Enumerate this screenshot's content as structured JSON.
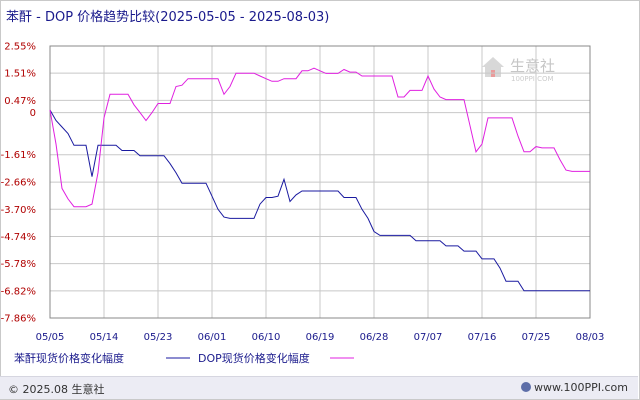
{
  "title": "苯酐 - DOP 价格趋势比较(2025-05-05 - 2025-08-03)",
  "watermark": {
    "brand": "生意社",
    "url": "100PPI.COM"
  },
  "footer": {
    "copyright": "© 2025.08 生意社",
    "site": "www.100PPI.com"
  },
  "colors": {
    "series_1": "#1a1aa0",
    "series_2": "#e020e0",
    "axis_label": "#b00000",
    "grid": "#c8c8c8"
  },
  "chart_data": {
    "type": "line",
    "xlabel": "",
    "ylabel": "",
    "ylim": [
      -7.86,
      2.55
    ],
    "y_ticks": [
      2.55,
      1.51,
      0.47,
      0,
      -1.61,
      -2.66,
      -3.7,
      -4.74,
      -5.78,
      -6.82,
      -7.86
    ],
    "y_tick_labels": [
      "2.55%",
      "1.51%",
      "0.47%",
      "0",
      "-1.61%",
      "-2.66%",
      "-3.70%",
      "-4.74%",
      "-5.78%",
      "-6.82%",
      "-7.86%"
    ],
    "x_range": [
      0,
      90
    ],
    "x_ticks": [
      0,
      9,
      18,
      27,
      36,
      45,
      54,
      63,
      72,
      81,
      90
    ],
    "x_tick_labels": [
      "05/05",
      "05/14",
      "05/23",
      "06/01",
      "06/10",
      "06/19",
      "06/28",
      "07/07",
      "07/16",
      "07/25",
      "08/03"
    ],
    "grid": true,
    "legend_position": "bottom",
    "series": [
      {
        "name": "苯酐现货价格变化幅度",
        "color": "#1a1aa0",
        "points": [
          [
            0,
            0.1
          ],
          [
            1,
            -0.3
          ],
          [
            2,
            -0.55
          ],
          [
            3,
            -0.8
          ],
          [
            4,
            -1.25
          ],
          [
            5,
            -1.25
          ],
          [
            6,
            -1.25
          ],
          [
            7,
            -2.45
          ],
          [
            8,
            -1.25
          ],
          [
            9,
            -1.25
          ],
          [
            10,
            -1.25
          ],
          [
            11,
            -1.25
          ],
          [
            12,
            -1.45
          ],
          [
            13,
            -1.45
          ],
          [
            14,
            -1.45
          ],
          [
            15,
            -1.65
          ],
          [
            16,
            -1.65
          ],
          [
            17,
            -1.65
          ],
          [
            18,
            -1.65
          ],
          [
            19,
            -1.65
          ],
          [
            20,
            -1.95
          ],
          [
            21,
            -2.3
          ],
          [
            22,
            -2.7
          ],
          [
            23,
            -2.7
          ],
          [
            24,
            -2.7
          ],
          [
            25,
            -2.7
          ],
          [
            26,
            -2.7
          ],
          [
            27,
            -3.2
          ],
          [
            28,
            -3.7
          ],
          [
            29,
            -4.0
          ],
          [
            30,
            -4.05
          ],
          [
            31,
            -4.05
          ],
          [
            32,
            -4.05
          ],
          [
            33,
            -4.05
          ],
          [
            34,
            -4.05
          ],
          [
            35,
            -3.5
          ],
          [
            36,
            -3.25
          ],
          [
            37,
            -3.25
          ],
          [
            38,
            -3.2
          ],
          [
            39,
            -2.55
          ],
          [
            40,
            -3.4
          ],
          [
            41,
            -3.15
          ],
          [
            42,
            -3.0
          ],
          [
            43,
            -3.0
          ],
          [
            44,
            -3.0
          ],
          [
            45,
            -3.0
          ],
          [
            46,
            -3.0
          ],
          [
            47,
            -3.0
          ],
          [
            48,
            -3.0
          ],
          [
            49,
            -3.25
          ],
          [
            50,
            -3.25
          ],
          [
            51,
            -3.25
          ],
          [
            52,
            -3.7
          ],
          [
            53,
            -4.05
          ],
          [
            54,
            -4.55
          ],
          [
            55,
            -4.7
          ],
          [
            56,
            -4.7
          ],
          [
            57,
            -4.7
          ],
          [
            58,
            -4.7
          ],
          [
            59,
            -4.7
          ],
          [
            60,
            -4.7
          ],
          [
            61,
            -4.9
          ],
          [
            62,
            -4.9
          ],
          [
            63,
            -4.9
          ],
          [
            64,
            -4.9
          ],
          [
            65,
            -4.9
          ],
          [
            66,
            -5.1
          ],
          [
            67,
            -5.1
          ],
          [
            68,
            -5.1
          ],
          [
            69,
            -5.3
          ],
          [
            70,
            -5.3
          ],
          [
            71,
            -5.3
          ],
          [
            72,
            -5.6
          ],
          [
            73,
            -5.6
          ],
          [
            74,
            -5.6
          ],
          [
            75,
            -5.95
          ],
          [
            76,
            -6.45
          ],
          [
            77,
            -6.45
          ],
          [
            78,
            -6.45
          ],
          [
            79,
            -6.82
          ],
          [
            80,
            -6.82
          ],
          [
            81,
            -6.82
          ],
          [
            82,
            -6.82
          ],
          [
            83,
            -6.82
          ],
          [
            84,
            -6.82
          ],
          [
            85,
            -6.82
          ],
          [
            86,
            -6.82
          ],
          [
            87,
            -6.82
          ],
          [
            88,
            -6.82
          ],
          [
            89,
            -6.82
          ],
          [
            90,
            -6.82
          ]
        ]
      },
      {
        "name": "DOP现货价格变化幅度",
        "color": "#e020e0",
        "points": [
          [
            0,
            0.1
          ],
          [
            1,
            -1.2
          ],
          [
            2,
            -2.9
          ],
          [
            3,
            -3.3
          ],
          [
            4,
            -3.6
          ],
          [
            5,
            -3.6
          ],
          [
            6,
            -3.6
          ],
          [
            7,
            -3.5
          ],
          [
            8,
            -2.3
          ],
          [
            9,
            -0.2
          ],
          [
            10,
            0.7
          ],
          [
            11,
            0.7
          ],
          [
            12,
            0.7
          ],
          [
            13,
            0.7
          ],
          [
            14,
            0.3
          ],
          [
            15,
            0.0
          ],
          [
            16,
            -0.3
          ],
          [
            17,
            0.0
          ],
          [
            18,
            0.35
          ],
          [
            19,
            0.35
          ],
          [
            20,
            0.35
          ],
          [
            21,
            1.0
          ],
          [
            22,
            1.05
          ],
          [
            23,
            1.3
          ],
          [
            24,
            1.3
          ],
          [
            25,
            1.3
          ],
          [
            26,
            1.3
          ],
          [
            27,
            1.3
          ],
          [
            28,
            1.3
          ],
          [
            29,
            0.7
          ],
          [
            30,
            1.0
          ],
          [
            31,
            1.51
          ],
          [
            32,
            1.51
          ],
          [
            33,
            1.51
          ],
          [
            34,
            1.51
          ],
          [
            35,
            1.4
          ],
          [
            36,
            1.3
          ],
          [
            37,
            1.2
          ],
          [
            38,
            1.2
          ],
          [
            39,
            1.3
          ],
          [
            40,
            1.3
          ],
          [
            41,
            1.3
          ],
          [
            42,
            1.6
          ],
          [
            43,
            1.6
          ],
          [
            44,
            1.7
          ],
          [
            45,
            1.6
          ],
          [
            46,
            1.5
          ],
          [
            47,
            1.5
          ],
          [
            48,
            1.5
          ],
          [
            49,
            1.65
          ],
          [
            50,
            1.55
          ],
          [
            51,
            1.55
          ],
          [
            52,
            1.4
          ],
          [
            53,
            1.4
          ],
          [
            54,
            1.4
          ],
          [
            55,
            1.4
          ],
          [
            56,
            1.4
          ],
          [
            57,
            1.4
          ],
          [
            58,
            0.6
          ],
          [
            59,
            0.6
          ],
          [
            60,
            0.85
          ],
          [
            61,
            0.85
          ],
          [
            62,
            0.85
          ],
          [
            63,
            1.4
          ],
          [
            64,
            0.9
          ],
          [
            65,
            0.6
          ],
          [
            66,
            0.5
          ],
          [
            67,
            0.5
          ],
          [
            68,
            0.5
          ],
          [
            69,
            0.5
          ],
          [
            70,
            -0.5
          ],
          [
            71,
            -1.5
          ],
          [
            72,
            -1.2
          ],
          [
            73,
            -0.2
          ],
          [
            74,
            -0.2
          ],
          [
            75,
            -0.2
          ],
          [
            76,
            -0.2
          ],
          [
            77,
            -0.2
          ],
          [
            78,
            -0.9
          ],
          [
            79,
            -1.5
          ],
          [
            80,
            -1.5
          ],
          [
            81,
            -1.3
          ],
          [
            82,
            -1.35
          ],
          [
            83,
            -1.35
          ],
          [
            84,
            -1.35
          ],
          [
            85,
            -1.8
          ],
          [
            86,
            -2.2
          ],
          [
            87,
            -2.25
          ],
          [
            88,
            -2.25
          ],
          [
            89,
            -2.25
          ],
          [
            90,
            -2.25
          ]
        ]
      }
    ]
  }
}
